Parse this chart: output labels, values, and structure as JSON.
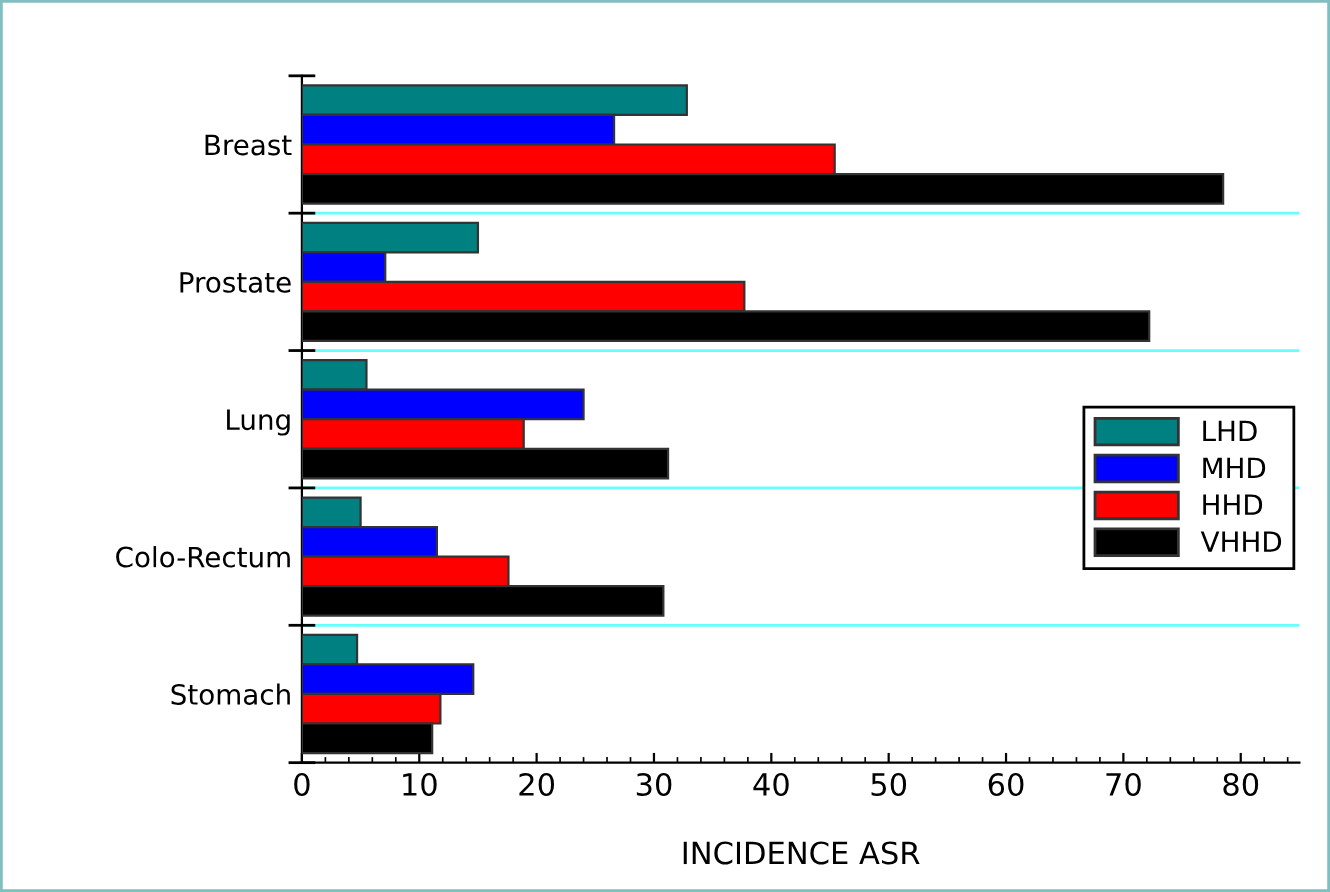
{
  "chart_data": {
    "type": "bar",
    "orientation": "horizontal",
    "xlabel": "INCIDENCE ASR",
    "categories": [
      "Breast",
      "Prostate",
      "Lung",
      "Colo-Rectum",
      "Stomach"
    ],
    "series": [
      {
        "name": "LHD",
        "color": "#008080",
        "values": [
          32.8,
          15.0,
          5.5,
          5.0,
          4.7
        ]
      },
      {
        "name": "MHD",
        "color": "#0000ff",
        "values": [
          26.6,
          7.1,
          24.0,
          11.5,
          14.6
        ]
      },
      {
        "name": "HHD",
        "color": "#ff0000",
        "values": [
          45.4,
          37.7,
          18.9,
          17.6,
          11.8
        ]
      },
      {
        "name": "VHHD",
        "color": "#000000",
        "values": [
          78.5,
          72.2,
          31.2,
          30.8,
          11.1
        ]
      }
    ],
    "xlim": [
      0,
      85
    ],
    "xticks": [
      0,
      10,
      20,
      30,
      40,
      50,
      60,
      70,
      80
    ],
    "grid": "y",
    "legend": "right"
  }
}
